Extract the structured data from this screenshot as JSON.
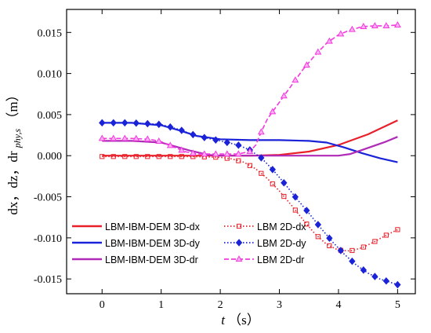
{
  "chart_data": {
    "type": "line",
    "xlabel": {
      "var": "t",
      "unit": "（s）"
    },
    "ylabel": {
      "main": "dx，dz，dr",
      "sub": "phy,s",
      "unit": "（m）"
    },
    "xlim": [
      -0.6,
      5.3
    ],
    "ylim": [
      -0.0168,
      0.0178
    ],
    "xticks": [
      0,
      1,
      2,
      3,
      4,
      5
    ],
    "yticks": [
      -0.015,
      -0.01,
      -0.005,
      0.0,
      0.005,
      0.01,
      0.015
    ],
    "ytick_labels": [
      "-0.015",
      "-0.010",
      "-0.005",
      "0.000",
      "0.005",
      "0.010",
      "0.015"
    ],
    "grid": false,
    "legend_position": "bottom-left",
    "series": [
      {
        "name": "LBM-IBM-DEM 3D-dx",
        "color": "#e8202a",
        "style": "solid",
        "marker": "none",
        "x": [
          0,
          1,
          2,
          2.5,
          3,
          3.5,
          4,
          4.5,
          5
        ],
        "y": [
          0,
          0,
          0,
          0,
          0.0001,
          0.0005,
          0.0013,
          0.0026,
          0.0043
        ]
      },
      {
        "name": "LBM 2D-dx",
        "color": "#e8202a",
        "style": "dotted",
        "marker": "square",
        "x": [
          0,
          0.5,
          1,
          1.5,
          2,
          2.2,
          2.4,
          2.6,
          2.8,
          3.0,
          3.2,
          3.4,
          3.6,
          3.8,
          4.0,
          4.2,
          4.4,
          4.6,
          4.8,
          5.0
        ],
        "y": [
          -0.0001,
          -0.0001,
          -0.0001,
          -0.0001,
          -0.0002,
          -0.0004,
          -0.0008,
          -0.0016,
          -0.0028,
          -0.0043,
          -0.006,
          -0.0078,
          -0.0095,
          -0.0108,
          -0.0115,
          -0.0116,
          -0.0112,
          -0.0105,
          -0.0097,
          -0.009
        ]
      },
      {
        "name": "LBM-IBM-DEM 3D-dy",
        "color": "#1a23d8",
        "style": "solid",
        "marker": "none",
        "x": [
          0,
          0.5,
          1,
          1.3,
          1.6,
          2,
          2.5,
          3,
          3.5,
          3.8,
          4.1,
          4.4,
          4.7,
          5
        ],
        "y": [
          0.004,
          0.004,
          0.0037,
          0.0031,
          0.0024,
          0.002,
          0.0019,
          0.0019,
          0.0018,
          0.0016,
          0.001,
          0.0003,
          -0.0003,
          -0.0008
        ]
      },
      {
        "name": "LBM 2D-dy",
        "color": "#1a23d8",
        "style": "dotted",
        "marker": "diamond",
        "x": [
          0,
          0.5,
          1,
          1.3,
          1.6,
          2.0,
          2.3,
          2.5,
          2.7,
          2.9,
          3.1,
          3.3,
          3.5,
          3.7,
          3.9,
          4.1,
          4.3,
          4.5,
          4.7,
          5.0
        ],
        "y": [
          0.004,
          0.004,
          0.0038,
          0.0032,
          0.0024,
          0.0018,
          0.0013,
          0.0007,
          -0.0003,
          -0.0018,
          -0.0035,
          -0.0053,
          -0.007,
          -0.0088,
          -0.0105,
          -0.012,
          -0.0133,
          -0.0143,
          -0.015,
          -0.0157
        ]
      },
      {
        "name": "LBM-IBM-DEM 3D-dr",
        "color": "#b02ab8",
        "style": "solid",
        "marker": "none",
        "x": [
          0,
          0.5,
          1,
          1.2,
          1.5,
          1.8,
          2,
          3,
          4,
          4.2,
          4.4,
          4.6,
          4.8,
          5
        ],
        "y": [
          0.0018,
          0.0018,
          0.0016,
          0.0012,
          0.0006,
          0.0001,
          0,
          0,
          0,
          0.0002,
          0.0007,
          0.0012,
          0.0017,
          0.0023
        ]
      },
      {
        "name": "LBM 2D-dr",
        "color": "#f238de",
        "style": "dashed",
        "marker": "triangle",
        "x": [
          0,
          0.5,
          0.8,
          1.0,
          1.2,
          1.4,
          1.6,
          1.8,
          2.0,
          2.3,
          2.5,
          2.6,
          2.7,
          2.8,
          3.0,
          3.2,
          3.4,
          3.6,
          3.8,
          4.0,
          4.2,
          4.4,
          4.6,
          4.8,
          5.0
        ],
        "y": [
          0.0021,
          0.0021,
          0.002,
          0.0017,
          0.0011,
          0.0005,
          0.0002,
          0.0002,
          0.0002,
          0.0002,
          0.0005,
          0.0013,
          0.003,
          0.0045,
          0.0065,
          0.0085,
          0.0105,
          0.0122,
          0.0137,
          0.0147,
          0.0153,
          0.0157,
          0.0158,
          0.0158,
          0.0159
        ]
      }
    ]
  }
}
